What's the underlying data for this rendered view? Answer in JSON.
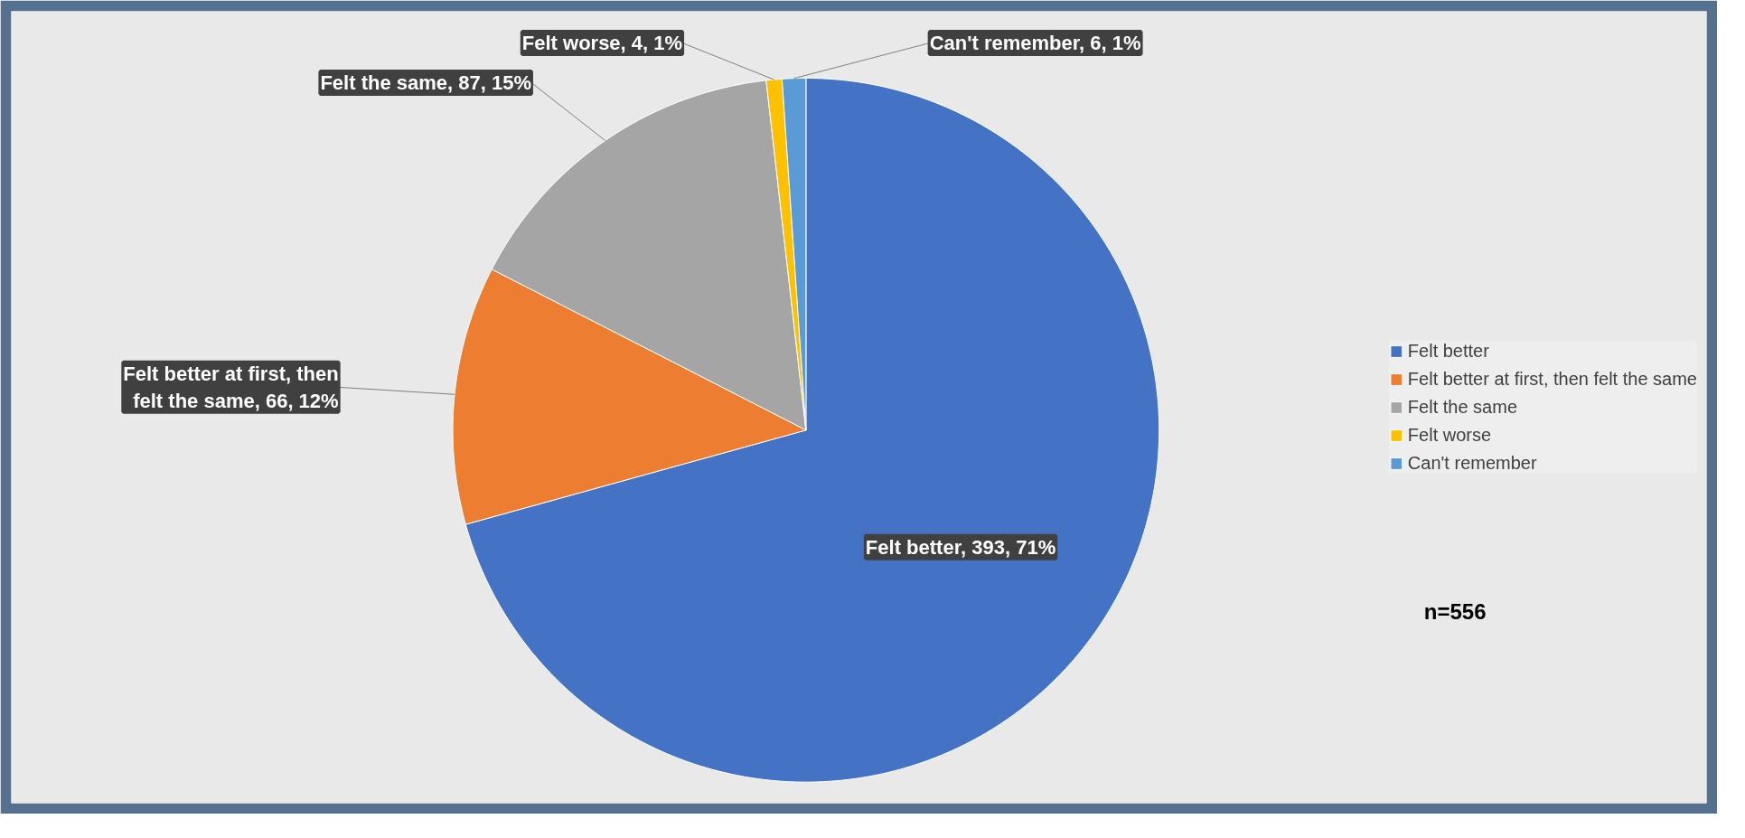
{
  "chart_data": {
    "type": "pie",
    "categories": [
      "Felt better",
      "Felt better at first, then felt the same",
      "Felt the same",
      "Felt worse",
      "Can't remember"
    ],
    "values": [
      393,
      66,
      87,
      4,
      6
    ],
    "colors": [
      "#4472c4",
      "#ed7d31",
      "#a5a5a5",
      "#ffc000",
      "#5b9bd5"
    ],
    "value_labels": [
      "Felt better, 393, 71%",
      "Felt better at first, then felt the same, 66, 12%",
      "Felt the same, 87, 15%",
      "Felt worse, 4, 1%",
      "Can't remember, 6, 1%"
    ],
    "legend": "right",
    "annotations": [
      "n=556"
    ]
  }
}
